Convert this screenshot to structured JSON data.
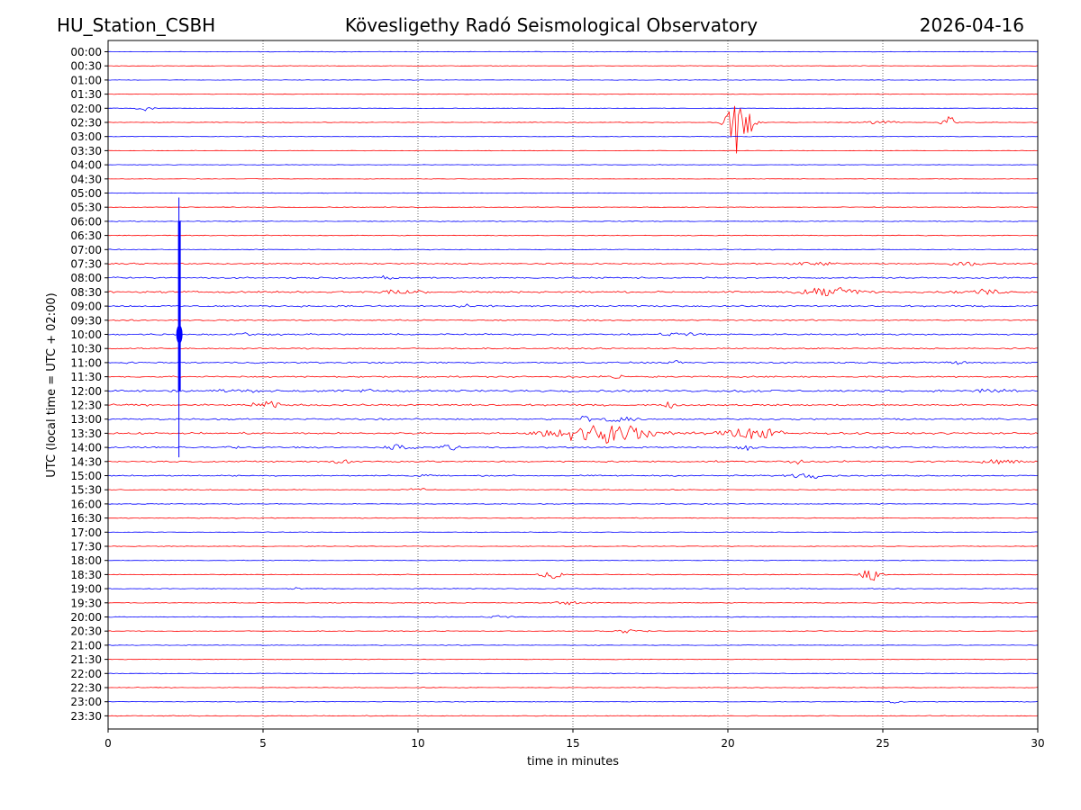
{
  "header": {
    "station": "HU_Station_CSBH",
    "observatory": "Kövesligethy Radó Seismological Observatory",
    "date": "2026-04-16"
  },
  "chart_data": {
    "type": "line",
    "title": "Kövesligethy Radó Seismological Observatory",
    "xlabel": "time in minutes",
    "ylabel": "UTC (local time = UTC + 02:00)",
    "xlim": [
      0,
      30
    ],
    "xticks": [
      0,
      5,
      10,
      15,
      20,
      25,
      30
    ],
    "grid_x": [
      5,
      10,
      15,
      20,
      25
    ],
    "row_colors": [
      "#0000ff",
      "#ff0000"
    ],
    "rows": [
      {
        "label": "00:00",
        "noise": 0.4,
        "events": []
      },
      {
        "label": "00:30",
        "noise": 0.4,
        "events": []
      },
      {
        "label": "01:00",
        "noise": 0.4,
        "events": []
      },
      {
        "label": "01:30",
        "noise": 0.4,
        "events": []
      },
      {
        "label": "02:00",
        "noise": 0.4,
        "events": [
          {
            "t": 1.2,
            "amp": 3,
            "dur": 0.4
          }
        ]
      },
      {
        "label": "02:30",
        "noise": 0.5,
        "events": [
          {
            "t": 20.4,
            "amp": 42,
            "dur": 0.5
          },
          {
            "t": 24.8,
            "amp": 2,
            "dur": 1.0
          },
          {
            "t": 27.1,
            "amp": 9,
            "dur": 0.3
          }
        ]
      },
      {
        "label": "03:00",
        "noise": 0.4,
        "events": []
      },
      {
        "label": "03:30",
        "noise": 0.4,
        "events": []
      },
      {
        "label": "04:00",
        "noise": 0.4,
        "events": []
      },
      {
        "label": "04:30",
        "noise": 0.4,
        "events": []
      },
      {
        "label": "05:00",
        "noise": 0.4,
        "events": []
      },
      {
        "label": "05:30",
        "noise": 0.5,
        "events": []
      },
      {
        "label": "06:00",
        "noise": 0.6,
        "events": []
      },
      {
        "label": "06:30",
        "noise": 0.6,
        "events": []
      },
      {
        "label": "07:00",
        "noise": 0.6,
        "events": []
      },
      {
        "label": "07:30",
        "noise": 1.0,
        "events": [
          {
            "t": 22.8,
            "amp": 2,
            "dur": 1.0
          },
          {
            "t": 27.6,
            "amp": 2,
            "dur": 1.0
          }
        ]
      },
      {
        "label": "08:00",
        "noise": 1.2,
        "events": [
          {
            "t": 9.0,
            "amp": 2,
            "dur": 0.5
          }
        ]
      },
      {
        "label": "08:30",
        "noise": 1.4,
        "events": [
          {
            "t": 9.5,
            "amp": 2,
            "dur": 1.5
          },
          {
            "t": 23.3,
            "amp": 5,
            "dur": 1.5
          },
          {
            "t": 28.2,
            "amp": 3,
            "dur": 1.0
          }
        ]
      },
      {
        "label": "09:00",
        "noise": 1.2,
        "events": [
          {
            "t": 11.5,
            "amp": 2,
            "dur": 0.5
          }
        ]
      },
      {
        "label": "09:30",
        "noise": 1.0,
        "events": []
      },
      {
        "label": "10:00",
        "noise": 1.2,
        "events": [
          {
            "t": 4.4,
            "amp": 2,
            "dur": 0.5
          },
          {
            "t": 18.5,
            "amp": 2,
            "dur": 1.0
          }
        ]
      },
      {
        "label": "10:30",
        "noise": 1.0,
        "events": []
      },
      {
        "label": "11:00",
        "noise": 1.2,
        "events": [
          {
            "t": 18.3,
            "amp": 2,
            "dur": 0.4
          },
          {
            "t": 27.3,
            "amp": 2,
            "dur": 0.8
          }
        ]
      },
      {
        "label": "11:30",
        "noise": 1.2,
        "events": [
          {
            "t": 16.4,
            "amp": 2,
            "dur": 0.4
          }
        ]
      },
      {
        "label": "12:00",
        "noise": 1.6,
        "events": [
          {
            "t": 4.0,
            "amp": 2,
            "dur": 1.0
          },
          {
            "t": 8.5,
            "amp": 2,
            "dur": 0.5
          },
          {
            "t": 20.5,
            "amp": 2,
            "dur": 0.6
          },
          {
            "t": 28.6,
            "amp": 3,
            "dur": 1.0
          }
        ]
      },
      {
        "label": "12:30",
        "noise": 1.4,
        "events": [
          {
            "t": 5.1,
            "amp": 4,
            "dur": 0.7
          },
          {
            "t": 18.1,
            "amp": 4,
            "dur": 0.3
          }
        ]
      },
      {
        "label": "13:00",
        "noise": 1.2,
        "events": [
          {
            "t": 15.4,
            "amp": 5,
            "dur": 0.3
          },
          {
            "t": 16.4,
            "amp": 3,
            "dur": 1.0
          }
        ]
      },
      {
        "label": "13:30",
        "noise": 1.4,
        "events": [
          {
            "t": 15.9,
            "amp": 11,
            "dur": 2.4
          },
          {
            "t": 20.8,
            "amp": 6,
            "dur": 1.6
          }
        ]
      },
      {
        "label": "14:00",
        "noise": 1.2,
        "events": [
          {
            "t": 3.9,
            "amp": 2,
            "dur": 0.4
          },
          {
            "t": 9.3,
            "amp": 3,
            "dur": 0.8
          },
          {
            "t": 11.1,
            "amp": 4,
            "dur": 0.6
          },
          {
            "t": 20.6,
            "amp": 3,
            "dur": 0.5
          }
        ]
      },
      {
        "label": "14:30",
        "noise": 1.2,
        "events": [
          {
            "t": 7.5,
            "amp": 4,
            "dur": 0.5
          },
          {
            "t": 22.2,
            "amp": 3,
            "dur": 0.4
          },
          {
            "t": 28.9,
            "amp": 3,
            "dur": 1.0
          }
        ]
      },
      {
        "label": "15:00",
        "noise": 1.0,
        "events": [
          {
            "t": 10.2,
            "amp": 2,
            "dur": 0.5
          },
          {
            "t": 22.6,
            "amp": 3,
            "dur": 1.0
          }
        ]
      },
      {
        "label": "15:30",
        "noise": 0.7,
        "events": [
          {
            "t": 10.0,
            "amp": 3,
            "dur": 0.4
          }
        ]
      },
      {
        "label": "16:00",
        "noise": 0.6,
        "events": []
      },
      {
        "label": "16:30",
        "noise": 0.6,
        "events": []
      },
      {
        "label": "17:00",
        "noise": 0.5,
        "events": []
      },
      {
        "label": "17:30",
        "noise": 0.5,
        "events": []
      },
      {
        "label": "18:00",
        "noise": 0.5,
        "events": []
      },
      {
        "label": "18:30",
        "noise": 0.6,
        "events": [
          {
            "t": 14.3,
            "amp": 5,
            "dur": 0.5
          },
          {
            "t": 24.6,
            "amp": 8,
            "dur": 0.4
          }
        ]
      },
      {
        "label": "19:00",
        "noise": 0.6,
        "events": [
          {
            "t": 6.0,
            "amp": 2,
            "dur": 0.3
          }
        ]
      },
      {
        "label": "19:30",
        "noise": 0.6,
        "events": [
          {
            "t": 15.0,
            "amp": 2,
            "dur": 1.0
          }
        ]
      },
      {
        "label": "20:00",
        "noise": 0.6,
        "events": [
          {
            "t": 12.7,
            "amp": 2,
            "dur": 0.5
          }
        ]
      },
      {
        "label": "20:30",
        "noise": 0.6,
        "events": [
          {
            "t": 16.8,
            "amp": 2,
            "dur": 0.8
          }
        ]
      },
      {
        "label": "21:00",
        "noise": 0.5,
        "events": []
      },
      {
        "label": "21:30",
        "noise": 0.5,
        "events": []
      },
      {
        "label": "22:00",
        "noise": 0.5,
        "events": []
      },
      {
        "label": "22:30",
        "noise": 0.5,
        "events": []
      },
      {
        "label": "23:00",
        "noise": 0.5,
        "events": [
          {
            "t": 25.3,
            "amp": 2,
            "dur": 0.4
          }
        ]
      },
      {
        "label": "23:30",
        "noise": 0.6,
        "events": []
      }
    ],
    "large_event": {
      "t": 2.3,
      "start_row": "05:00",
      "end_row": "14:00",
      "color": "#0000ff",
      "peak_row": "10:00"
    }
  }
}
